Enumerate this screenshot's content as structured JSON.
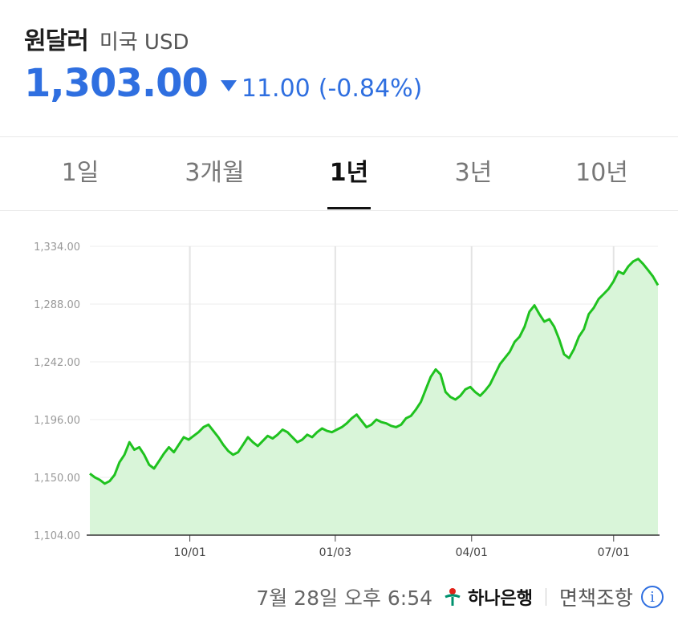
{
  "header": {
    "pair_name": "원달러",
    "pair_sub": "미국 USD",
    "price": "1,303.00",
    "change_abs": "11.00",
    "change_pct": "(-0.84%)",
    "direction": "down"
  },
  "tabs": [
    {
      "label": "1일",
      "active": false
    },
    {
      "label": "3개월",
      "active": false
    },
    {
      "label": "1년",
      "active": true
    },
    {
      "label": "3년",
      "active": false
    },
    {
      "label": "10년",
      "active": false
    }
  ],
  "footer": {
    "timestamp": "7월 28일 오후 6:54",
    "bank_name": "하나은행",
    "disclaimer": "면책조항",
    "info_icon": "info-icon"
  },
  "colors": {
    "accent_blue": "#2f6fe0",
    "line_green": "#1fc21f",
    "fill_green": "#d9f5d9"
  },
  "chart_data": {
    "type": "area",
    "title": "",
    "xlabel": "",
    "ylabel": "",
    "ylim": [
      1104,
      1334
    ],
    "yticks": [
      "1,334.00",
      "1,288.00",
      "1,242.00",
      "1,196.00",
      "1,150.00",
      "1,104.00"
    ],
    "xticks": [
      "10/01",
      "01/03",
      "04/01",
      "07/01"
    ],
    "grid": true,
    "series": [
      {
        "values": [
          1153,
          1150,
          1148,
          1145,
          1147,
          1152,
          1162,
          1168,
          1178,
          1172,
          1174,
          1168,
          1160,
          1157,
          1163,
          1169,
          1174,
          1170,
          1176,
          1182,
          1180,
          1183,
          1186,
          1190,
          1192,
          1187,
          1182,
          1176,
          1171,
          1168,
          1170,
          1176,
          1182,
          1178,
          1175,
          1179,
          1183,
          1181,
          1184,
          1188,
          1186,
          1182,
          1178,
          1180,
          1184,
          1182,
          1186,
          1189,
          1187,
          1186,
          1188,
          1190,
          1193,
          1197,
          1200,
          1195,
          1190,
          1192,
          1196,
          1194,
          1193,
          1191,
          1190,
          1192,
          1197,
          1199,
          1204,
          1210,
          1220,
          1230,
          1236,
          1232,
          1218,
          1214,
          1212,
          1215,
          1220,
          1222,
          1218,
          1215,
          1219,
          1224,
          1232,
          1240,
          1245,
          1250,
          1258,
          1262,
          1270,
          1282,
          1287,
          1280,
          1274,
          1276,
          1270,
          1260,
          1248,
          1245,
          1252,
          1262,
          1268,
          1280,
          1285,
          1292,
          1296,
          1300,
          1306,
          1314,
          1312,
          1318,
          1322,
          1324,
          1320,
          1315,
          1310,
          1303
        ]
      }
    ]
  }
}
